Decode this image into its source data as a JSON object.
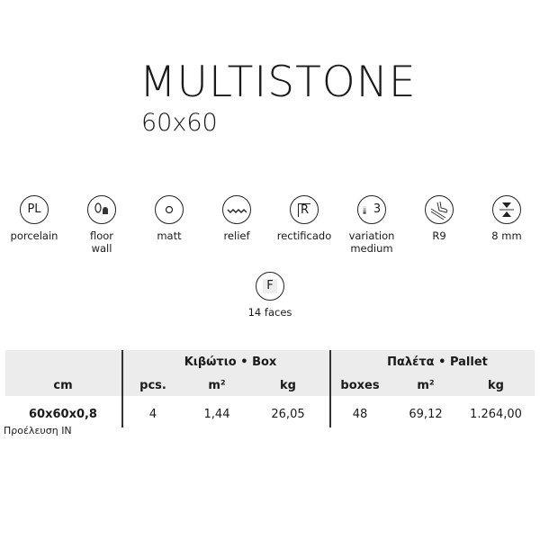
{
  "title": "MULTISTONE",
  "size": "60x60",
  "features": [
    {
      "icon": "porcelain-icon",
      "icon_text": "PL",
      "label": "porcelain"
    },
    {
      "icon": "floor-wall-icon",
      "label": "floor",
      "label2": "wall"
    },
    {
      "icon": "matt-icon",
      "label": "matt"
    },
    {
      "icon": "relief-icon",
      "label": "relief"
    },
    {
      "icon": "rectified-icon",
      "icon_text": "R",
      "label": "rectificado"
    },
    {
      "icon": "variation-icon",
      "icon_text": "3",
      "label": "variation",
      "label2": "medium"
    },
    {
      "icon": "slip-resistance-icon",
      "label": "R9"
    },
    {
      "icon": "thickness-icon",
      "label": "8 mm"
    },
    {
      "icon": "faces-icon",
      "icon_text": "F",
      "label": "14 faces"
    }
  ],
  "table": {
    "group_box": "Κιβώτιο • Box",
    "group_pallet": "Παλέτα • Pallet",
    "headers": [
      "cm",
      "pcs.",
      "m²",
      "kg",
      "boxes",
      "m²",
      "kg"
    ],
    "row": [
      "60x60x0,8",
      "4",
      "1,44",
      "26,05",
      "48",
      "69,12",
      "1.264,00"
    ]
  },
  "origin": "Προέλευση IN"
}
